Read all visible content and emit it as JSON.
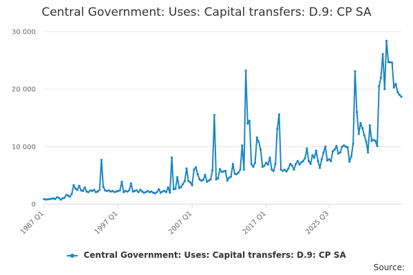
{
  "source_label": "Source:",
  "colors": {
    "series": "#1a85c5",
    "grid": "#e6e6e6",
    "axis": "#ccd6eb"
  },
  "chart_data": {
    "type": "line",
    "title": "Central Government: Uses: Capital transfers: D.9: CP SA",
    "xlabel": "",
    "ylabel": "",
    "ylim": [
      0,
      30000
    ],
    "yticks": [
      0,
      10000,
      20000,
      30000
    ],
    "ytick_labels": [
      "0",
      "10 000",
      "20 000",
      "30 000"
    ],
    "xtick_labels": [
      "1987 Q1",
      "1997 Q1",
      "2007 Q1",
      "2017 Q1",
      "2025 Q3"
    ],
    "grid": true,
    "legend": "bottom-center",
    "series": [
      {
        "name": "Central Government: Uses: Capital transfers: D.9: CP SA",
        "start": "1987 Q1",
        "frequency": "quarterly",
        "values": [
          900,
          800,
          850,
          900,
          950,
          1000,
          900,
          1200,
          1100,
          800,
          1000,
          1100,
          1600,
          1500,
          1300,
          1800,
          3300,
          2700,
          2500,
          3200,
          2400,
          2300,
          2900,
          2200,
          2100,
          2400,
          2300,
          2500,
          2100,
          2200,
          2500,
          7700,
          3000,
          2400,
          2300,
          2400,
          2200,
          2300,
          2100,
          2200,
          2300,
          2400,
          3900,
          2100,
          2300,
          2200,
          2400,
          3600,
          2200,
          2300,
          2400,
          2100,
          2500,
          2200,
          2000,
          2100,
          2300,
          2100,
          2200,
          2000,
          1900,
          2100,
          2600,
          2000,
          2200,
          2300,
          2100,
          2900,
          2000,
          8100,
          2600,
          2700,
          4700,
          2800,
          3000,
          3500,
          4000,
          6200,
          4000,
          3800,
          3300,
          6000,
          6400,
          5200,
          4300,
          4100,
          4200,
          5100,
          3900,
          4100,
          4300,
          5900,
          15500,
          4300,
          4500,
          6100,
          5600,
          5700,
          5800,
          4100,
          4600,
          4800,
          7000,
          5300,
          5200,
          5500,
          6000,
          10200,
          6000,
          23200,
          14000,
          14500,
          7000,
          6500,
          7200,
          11600,
          10800,
          9500,
          6500,
          6700,
          7200,
          6900,
          8100,
          6000,
          5800,
          7000,
          13100,
          15600,
          6000,
          5800,
          6000,
          5700,
          6200,
          7000,
          6700,
          6000,
          7000,
          7500,
          6900,
          7300,
          7500,
          8000,
          9700,
          7500,
          7000,
          8500,
          8100,
          9300,
          7500,
          6300,
          7800,
          9000,
          10000,
          7600,
          7800,
          7500,
          9200,
          9500,
          10100,
          8800,
          9000,
          10000,
          10200,
          10000,
          9900,
          7400,
          8300,
          10500,
          23100,
          16000,
          12200,
          14100,
          13200,
          12000,
          10900,
          9000,
          13700,
          11000,
          11200,
          11000,
          10100,
          20500,
          22000,
          26100,
          20000,
          28400,
          24700,
          24700,
          24600,
          20300,
          20900,
          19500,
          19000,
          18700
        ]
      }
    ]
  }
}
